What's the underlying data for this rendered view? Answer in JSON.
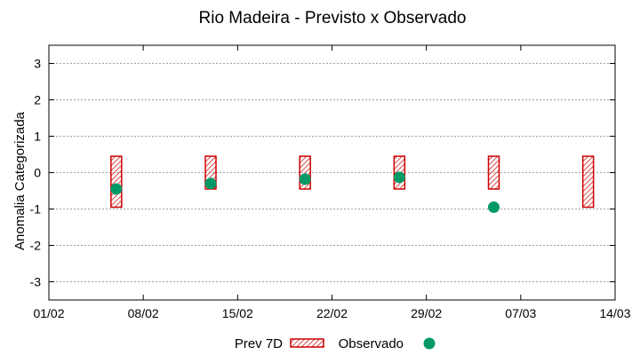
{
  "chart_data": {
    "type": "scatter",
    "title": "Rio Madeira - Previsto x Observado",
    "xlabel": "",
    "ylabel": "Anomalia Categorizada",
    "ylim": [
      -3.5,
      3.5
    ],
    "yticks": [
      -3,
      -2,
      -1,
      0,
      1,
      2,
      3
    ],
    "ytick_labels": [
      "-3",
      "-2",
      "-1",
      "0",
      "1",
      "2",
      "3"
    ],
    "xlim_days": [
      0,
      42
    ],
    "xticks_days": [
      0,
      7,
      14,
      21,
      28,
      35,
      42
    ],
    "xtick_labels": [
      "01/02",
      "08/02",
      "15/02",
      "22/02",
      "29/02",
      "07/03",
      "14/03"
    ],
    "grid": true,
    "legend_position": "bottom-center",
    "series": [
      {
        "name": "Prev 7D",
        "kind": "range-bar",
        "color": "#cc0000",
        "points": [
          {
            "x": 5,
            "low": -0.95,
            "high": 0.45
          },
          {
            "x": 12,
            "low": -0.45,
            "high": 0.45
          },
          {
            "x": 19,
            "low": -0.45,
            "high": 0.45
          },
          {
            "x": 26,
            "low": -0.45,
            "high": 0.45
          },
          {
            "x": 33,
            "low": -0.45,
            "high": 0.45
          },
          {
            "x": 40,
            "low": -0.95,
            "high": 0.45
          }
        ]
      },
      {
        "name": "Observado",
        "kind": "point",
        "color": "#009966",
        "points": [
          {
            "x": 5,
            "y": -0.45
          },
          {
            "x": 12,
            "y": -0.3
          },
          {
            "x": 19,
            "y": -0.18
          },
          {
            "x": 26,
            "y": -0.13
          },
          {
            "x": 33,
            "y": -0.95
          }
        ]
      }
    ]
  }
}
